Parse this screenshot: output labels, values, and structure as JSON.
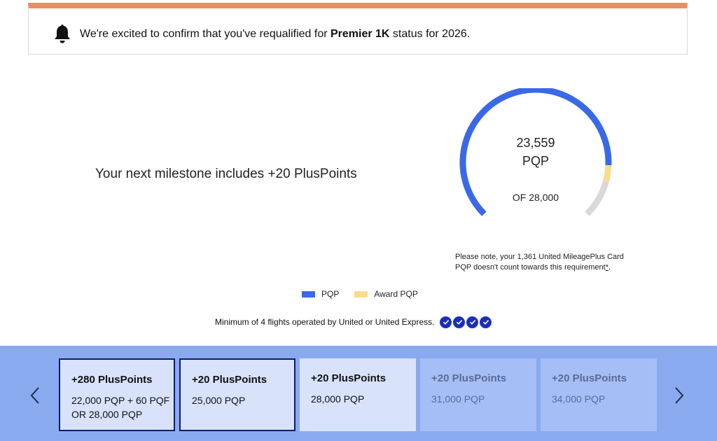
{
  "notice": {
    "icon": "bell-icon",
    "text_before": "We're excited to confirm that you've requalified for ",
    "status_bold": "Premier 1K",
    "text_after": " status for 2026.",
    "accent_color": "#ec8d62"
  },
  "milestone": {
    "text": "Your next milestone includes +20 PlusPoints"
  },
  "gauge": {
    "value": "23,559",
    "unit": "PQP",
    "target_label": "OF 28,000",
    "current_pqp": 23559,
    "award_pqp": 1361,
    "target": 28000,
    "colors": {
      "pqp": "#3a69e8",
      "award": "#f7dc8e",
      "remaining": "#d9d9d9"
    }
  },
  "note": {
    "text": "Please note, your 1,361 United MileagePlus Card PQP doesn't count towards this requirement",
    "link": "*",
    "end": "."
  },
  "legend": [
    {
      "label": "PQP",
      "color": "#3a69e8"
    },
    {
      "label": "Award PQP",
      "color": "#f7dc8e"
    }
  ],
  "flights": {
    "text": "Minimum of 4 flights operated by United or United Express.",
    "completed": 4
  },
  "carousel": {
    "prev_icon": "chevron-left-icon",
    "next_icon": "chevron-right-icon",
    "cards": [
      {
        "title": "+280 PlusPoints",
        "lines": [
          "22,000 PQP + 60 PQF",
          "OR 28,000 PQP"
        ],
        "state": "done"
      },
      {
        "title": "+20 PlusPoints",
        "lines": [
          "25,000 PQP"
        ],
        "state": "done"
      },
      {
        "title": "+20 PlusPoints",
        "lines": [
          "28,000 PQP"
        ],
        "state": "next"
      },
      {
        "title": "+20 PlusPoints",
        "lines": [
          "31,000 PQP"
        ],
        "state": "future"
      },
      {
        "title": "+20 PlusPoints",
        "lines": [
          "34,000 PQP"
        ],
        "state": "future"
      }
    ]
  }
}
